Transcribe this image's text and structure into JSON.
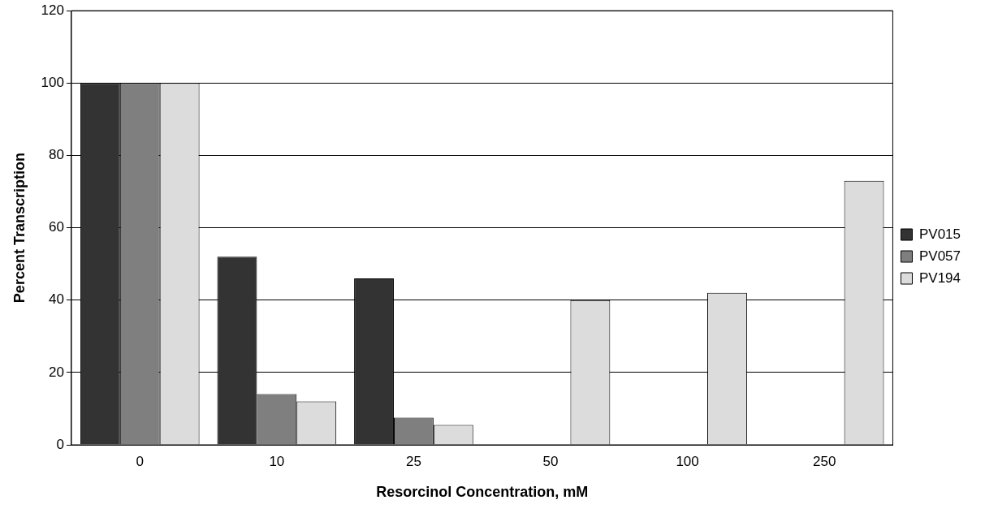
{
  "chart_data": {
    "type": "bar",
    "xlabel": "Resorcinol Concentration, mM",
    "ylabel": "Percent Transcription",
    "categories": [
      "0",
      "10",
      "25",
      "50",
      "100",
      "250"
    ],
    "series": [
      {
        "name": "PV015",
        "color": "#333333",
        "values": [
          100,
          52,
          46,
          0,
          0,
          0
        ]
      },
      {
        "name": "PV057",
        "color": "#7f7f7f",
        "values": [
          100,
          14,
          7.5,
          0,
          0,
          0
        ]
      },
      {
        "name": "PV194",
        "color": "#dcdcdc",
        "values": [
          100,
          12,
          5.5,
          40,
          42,
          73
        ]
      }
    ],
    "ylim": [
      0,
      120
    ],
    "yticks": [
      0,
      20,
      40,
      60,
      80,
      100,
      120
    ],
    "grid": "y",
    "legend": "right"
  }
}
